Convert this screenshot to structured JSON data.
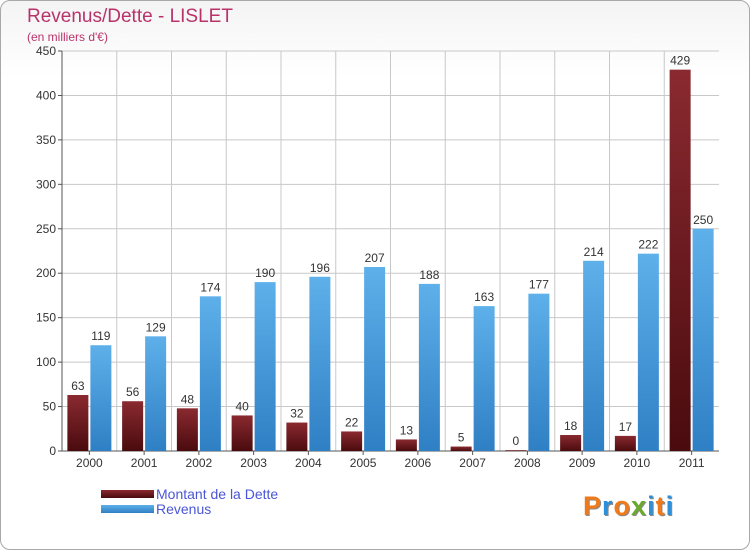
{
  "title": "Revenus/Dette - LISLET",
  "subtitle": "(en milliers d'€)",
  "logo": {
    "text": "Proxiti",
    "letter_colors": [
      "#f07a1a",
      "#2f8fd8",
      "#f07a1a",
      "#6aaa2a",
      "#2f8fd8",
      "#f07a1a",
      "#2f8fd8"
    ]
  },
  "colors": {
    "title": "#b8336a",
    "dette": "#7a1a1f",
    "dette_dark": "#4a0b0e",
    "revenus": "#56a9e6",
    "revenus_dark": "#2f7fc4",
    "grid": "#c8c8c8",
    "legend_text": "#4b56d6"
  },
  "chart_data": {
    "type": "bar",
    "title": "Revenus/Dette - LISLET",
    "subtitle": "(en milliers d'€)",
    "categories": [
      "2000",
      "2001",
      "2002",
      "2003",
      "2004",
      "2005",
      "2006",
      "2007",
      "2008",
      "2009",
      "2010",
      "2011"
    ],
    "series": [
      {
        "name": "Montant de la Dette",
        "values": [
          63,
          56,
          48,
          40,
          32,
          22,
          13,
          5,
          0,
          18,
          17,
          429
        ]
      },
      {
        "name": "Revenus",
        "values": [
          119,
          129,
          174,
          190,
          196,
          207,
          188,
          163,
          177,
          214,
          222,
          250
        ]
      }
    ],
    "ylim": [
      0,
      450
    ],
    "yticks": [
      0,
      50,
      100,
      150,
      200,
      250,
      300,
      350,
      400,
      450
    ],
    "grid": true,
    "legend_position": "bottom-left"
  }
}
